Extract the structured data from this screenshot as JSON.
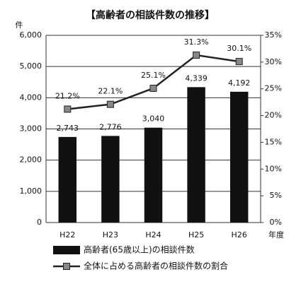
{
  "chart_data": {
    "type": "bar",
    "title": "【高齢者の相談件数の推移】",
    "y_label": "件",
    "x_label": "年度",
    "categories": [
      "H22",
      "H23",
      "H24",
      "H25",
      "H26"
    ],
    "series": [
      {
        "name": "高齢者(65歳以上)の相談件数",
        "type": "bar",
        "color": "#111111",
        "values": [
          2743,
          2776,
          3040,
          4339,
          4192
        ],
        "value_labels": [
          "2,743",
          "2,776",
          "3,040",
          "4,339",
          "4,192"
        ]
      },
      {
        "name": "全体に占める高齢者の相談件数の割合",
        "type": "line",
        "axis": "y2",
        "color": "#222222",
        "marker_color": "#888888",
        "values": [
          21.2,
          22.1,
          25.1,
          31.3,
          30.1
        ],
        "value_labels": [
          "21.2%",
          "22.1%",
          "25.1%",
          "31.3%",
          "30.1%"
        ]
      }
    ],
    "ylim": [
      0,
      6000
    ],
    "yticks": [
      0,
      {
        "value": 1000,
        "label": "1,000"
      },
      {
        "value": 2000,
        "label": "2,000"
      },
      {
        "value": 3000,
        "label": "3,000"
      },
      {
        "value": 4000,
        "label": "4,000"
      },
      {
        "value": 5000,
        "label": "5,000"
      },
      {
        "value": 6000,
        "label": "6,000"
      }
    ],
    "y2lim": [
      0,
      35
    ],
    "y2ticks": [
      {
        "value": 0,
        "label": "0%"
      },
      {
        "value": 5,
        "label": "5%"
      },
      {
        "value": 10,
        "label": "10%"
      },
      {
        "value": 15,
        "label": "15%"
      },
      {
        "value": 20,
        "label": "20%"
      },
      {
        "value": 25,
        "label": "25%"
      },
      {
        "value": 30,
        "label": "30%"
      },
      {
        "value": 35,
        "label": "35%"
      }
    ],
    "grid": true
  }
}
